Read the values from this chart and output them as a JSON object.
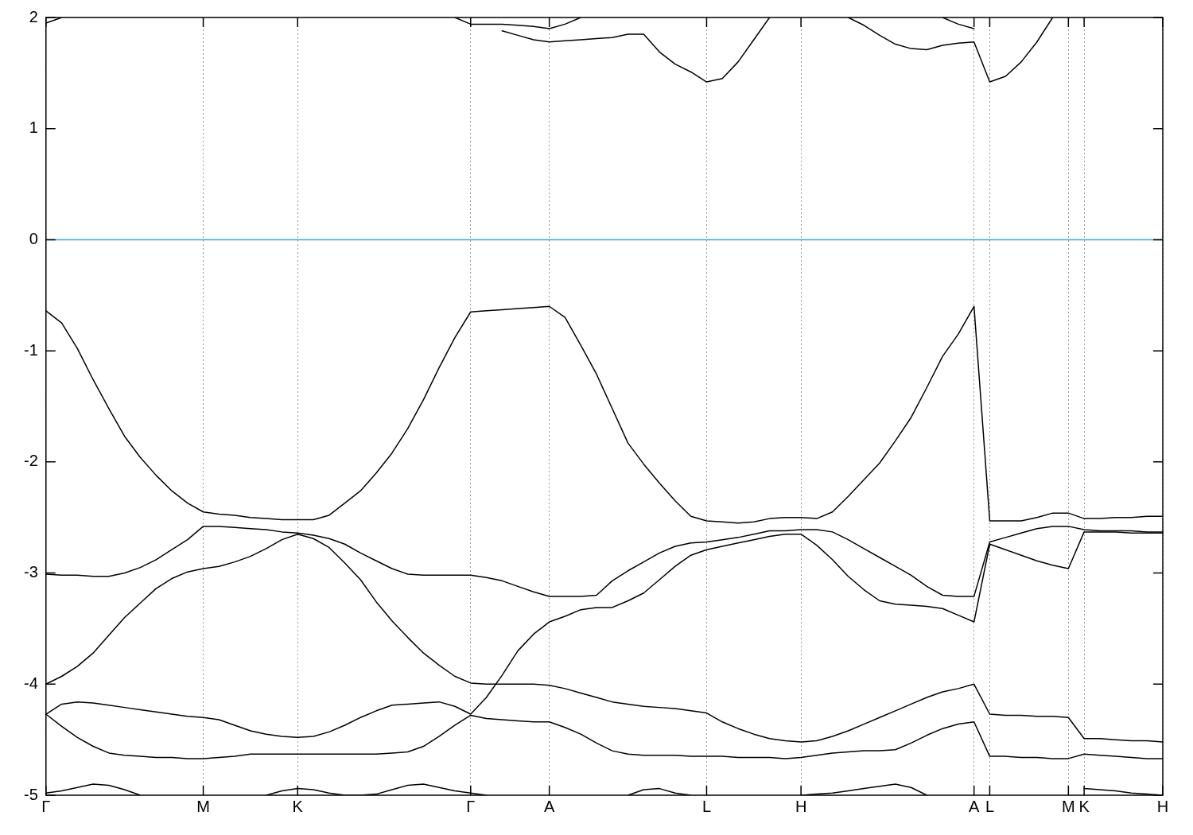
{
  "chart_data": {
    "type": "line",
    "ylim": [
      -5,
      2
    ],
    "categories": [
      "Γ",
      null,
      null,
      null,
      null,
      null,
      null,
      null,
      null,
      null,
      "M",
      null,
      null,
      null,
      null,
      null,
      "K",
      null,
      null,
      null,
      null,
      null,
      null,
      null,
      null,
      null,
      null,
      "Γ",
      null,
      null,
      null,
      null,
      "A",
      null,
      null,
      null,
      null,
      null,
      null,
      null,
      null,
      null,
      "L",
      null,
      null,
      null,
      null,
      null,
      "H",
      null,
      null,
      null,
      null,
      null,
      null,
      null,
      null,
      null,
      null,
      "A",
      "L",
      null,
      null,
      null,
      null,
      "M",
      "K",
      null,
      null,
      null,
      null,
      "H"
    ],
    "yticks": [
      -5,
      -4,
      -3,
      -2,
      -1,
      0,
      1,
      2
    ],
    "grid": "x",
    "legend": false,
    "marker": "none",
    "line_style": "solid",
    "ref_lines": [
      {
        "axis": "y",
        "value": 0,
        "color": "#3ea8dc"
      }
    ],
    "series": [
      {
        "color": "#000000",
        "values": [
          -0.64,
          -0.75,
          -0.98,
          -1.26,
          -1.52,
          -1.77,
          -1.96,
          -2.12,
          -2.26,
          -2.37,
          -2.45,
          -2.47,
          -2.48,
          -2.5,
          -2.51,
          -2.52,
          -2.52,
          -2.52,
          -2.48,
          -2.37,
          -2.26,
          -2.1,
          -1.92,
          -1.7,
          -1.44,
          -1.15,
          -0.88,
          -0.65,
          -0.64,
          -0.63,
          -0.62,
          -0.61,
          -0.6,
          -0.7,
          -0.95,
          -1.21,
          -1.52,
          -1.83,
          -2.02,
          -2.19,
          -2.35,
          -2.49,
          -2.53,
          -2.54,
          -2.55,
          -2.54,
          -2.51,
          -2.5,
          -2.5,
          -2.51,
          -2.45,
          -2.31,
          -2.16,
          -2.01,
          -1.81,
          -1.6,
          -1.33,
          -1.05,
          -0.85,
          -0.6,
          -2.53,
          -2.53,
          -2.53,
          -2.5,
          -2.46,
          -2.46,
          -2.51,
          -2.51,
          -2.5,
          -2.5,
          -2.49,
          -2.49
        ]
      },
      {
        "color": "#000000",
        "values": [
          -3.01,
          -3.02,
          -3.02,
          -3.03,
          -3.03,
          -3.0,
          -2.95,
          -2.88,
          -2.79,
          -2.7,
          -2.58,
          -2.58,
          -2.59,
          -2.6,
          -2.61,
          -2.63,
          -2.64,
          -2.66,
          -2.69,
          -2.74,
          -2.82,
          -2.89,
          -2.96,
          -3.01,
          -3.02,
          -3.02,
          -3.02,
          -3.02,
          -3.04,
          -3.07,
          -3.12,
          -3.17,
          -3.21,
          -3.21,
          -3.21,
          -3.2,
          -3.07,
          -2.98,
          -2.9,
          -2.82,
          -2.76,
          -2.73,
          -2.72,
          -2.7,
          -2.68,
          -2.65,
          -2.62,
          -2.62,
          -2.61,
          -2.61,
          -2.63,
          -2.7,
          -2.78,
          -2.86,
          -2.94,
          -3.02,
          -3.12,
          -3.2,
          -3.21,
          -3.21,
          -2.72,
          -2.68,
          -2.64,
          -2.6,
          -2.58,
          -2.58,
          -2.61,
          -2.62,
          -2.62,
          -2.62,
          -2.63,
          -2.63
        ]
      },
      {
        "color": "#000000",
        "values": [
          -4.0,
          -3.93,
          -3.84,
          -3.72,
          -3.56,
          -3.4,
          -3.27,
          -3.14,
          -3.05,
          -2.99,
          -2.96,
          -2.94,
          -2.9,
          -2.85,
          -2.78,
          -2.7,
          -2.65,
          -2.69,
          -2.77,
          -2.91,
          -3.06,
          -3.26,
          -3.43,
          -3.58,
          -3.72,
          -3.83,
          -3.93,
          -3.99,
          -4.0,
          -4.0,
          -4.0,
          -4.0,
          -4.01,
          -4.04,
          -4.08,
          -4.12,
          -4.16,
          -4.18,
          -4.2,
          -4.21,
          -4.22,
          -4.24,
          -4.26,
          -4.34,
          -4.4,
          -4.45,
          -4.49,
          -4.51,
          -4.52,
          -4.51,
          -4.47,
          -4.42,
          -4.36,
          -4.3,
          -4.24,
          -4.18,
          -4.12,
          -4.07,
          -4.04,
          -4.0,
          -4.27,
          -4.28,
          -4.28,
          -4.29,
          -4.29,
          -4.3,
          -4.49,
          -4.49,
          -4.5,
          -4.51,
          -4.51,
          -4.52
        ]
      },
      {
        "color": "#000000",
        "values": [
          -4.27,
          -4.18,
          -4.16,
          -4.17,
          -4.19,
          -4.21,
          -4.23,
          -4.25,
          -4.27,
          -4.29,
          -4.3,
          -4.32,
          -4.37,
          -4.42,
          -4.45,
          -4.47,
          -4.48,
          -4.47,
          -4.43,
          -4.37,
          -4.3,
          -4.24,
          -4.19,
          -4.18,
          -4.17,
          -4.16,
          -4.2,
          -4.27,
          -4.12,
          -3.92,
          -3.7,
          -3.55,
          -3.44,
          -3.39,
          -3.33,
          -3.31,
          -3.31,
          -3.25,
          -3.18,
          -3.06,
          -2.94,
          -2.84,
          -2.79,
          -2.76,
          -2.73,
          -2.7,
          -2.67,
          -2.65,
          -2.65,
          -2.75,
          -2.88,
          -3.03,
          -3.15,
          -3.25,
          -3.28,
          -3.29,
          -3.3,
          -3.32,
          -3.38,
          -3.44,
          -2.74,
          -2.79,
          -2.84,
          -2.89,
          -2.93,
          -2.96,
          -2.63,
          -2.63,
          -2.63,
          -2.64,
          -2.64,
          -2.64
        ]
      },
      {
        "color": "#000000",
        "values": [
          -4.27,
          -4.38,
          -4.48,
          -4.56,
          -4.62,
          -4.64,
          -4.65,
          -4.66,
          -4.66,
          -4.67,
          -4.67,
          -4.66,
          -4.65,
          -4.63,
          -4.63,
          -4.63,
          -4.63,
          -4.63,
          -4.63,
          -4.63,
          -4.63,
          -4.63,
          -4.62,
          -4.61,
          -4.56,
          -4.47,
          -4.37,
          -4.28,
          -4.31,
          -4.32,
          -4.33,
          -4.34,
          -4.34,
          -4.39,
          -4.45,
          -4.53,
          -4.6,
          -4.63,
          -4.64,
          -4.64,
          -4.64,
          -4.65,
          -4.65,
          -4.65,
          -4.66,
          -4.66,
          -4.66,
          -4.67,
          -4.66,
          -4.64,
          -4.62,
          -4.61,
          -4.6,
          -4.6,
          -4.59,
          -4.53,
          -4.46,
          -4.4,
          -4.36,
          -4.34,
          -4.65,
          -4.65,
          -4.66,
          -4.66,
          -4.67,
          -4.67,
          -4.63,
          -4.64,
          -4.65,
          -4.66,
          -4.67,
          -4.67
        ]
      },
      {
        "color": "#000000",
        "values": [
          -4.98,
          -4.96,
          -4.93,
          -4.9,
          -4.91,
          -4.95,
          -5.0,
          null,
          null,
          null,
          null,
          null,
          null,
          null,
          null,
          null,
          null,
          null,
          null,
          null,
          null,
          null,
          null,
          null,
          null,
          null,
          null,
          null,
          null,
          null,
          null,
          null,
          null,
          null,
          null,
          null,
          null,
          null,
          null,
          null,
          null,
          null,
          null,
          null,
          null,
          null,
          null,
          null,
          null,
          null,
          null,
          null,
          null,
          null,
          null,
          null,
          null,
          null,
          null,
          null,
          null,
          null,
          null,
          null,
          null,
          null,
          null,
          null,
          null,
          null,
          null,
          null
        ]
      },
      {
        "color": "#000000",
        "values": [
          null,
          null,
          null,
          null,
          null,
          null,
          null,
          null,
          null,
          null,
          null,
          null,
          null,
          null,
          -5.0,
          -4.96,
          -4.94,
          -4.95,
          -4.98,
          -5.0,
          -5.0,
          -4.99,
          -4.95,
          -4.91,
          -4.9,
          -4.93,
          -4.96,
          -4.98,
          -5.0,
          null,
          null,
          null,
          null,
          null,
          null,
          null,
          null,
          null,
          null,
          null,
          null,
          null,
          null,
          null,
          null,
          null,
          null,
          null,
          null,
          null,
          null,
          null,
          null,
          null,
          null,
          null,
          null,
          null,
          null,
          null,
          null,
          null,
          null,
          null,
          null,
          null,
          null,
          null,
          null,
          null,
          null,
          null
        ]
      },
      {
        "color": "#000000",
        "values": [
          null,
          null,
          null,
          null,
          null,
          null,
          null,
          null,
          null,
          null,
          null,
          null,
          null,
          null,
          null,
          null,
          null,
          null,
          null,
          null,
          null,
          null,
          null,
          null,
          null,
          null,
          null,
          null,
          null,
          null,
          null,
          null,
          null,
          null,
          null,
          null,
          null,
          -5.0,
          -4.95,
          -4.94,
          -4.98,
          -5.0,
          null,
          null,
          null,
          null,
          null,
          null,
          null,
          null,
          null,
          null,
          null,
          null,
          null,
          null,
          null,
          null,
          null,
          null,
          null,
          null,
          null,
          null,
          null,
          null,
          null,
          null,
          null,
          null,
          null,
          null
        ]
      },
      {
        "color": "#000000",
        "values": [
          null,
          null,
          null,
          null,
          null,
          null,
          null,
          null,
          null,
          null,
          null,
          null,
          null,
          null,
          null,
          null,
          null,
          null,
          null,
          null,
          null,
          null,
          null,
          null,
          null,
          null,
          null,
          null,
          null,
          null,
          null,
          null,
          null,
          null,
          null,
          null,
          null,
          null,
          null,
          null,
          null,
          null,
          null,
          null,
          null,
          null,
          null,
          null,
          -5.0,
          -4.99,
          -4.98,
          -4.96,
          -4.94,
          -4.92,
          -4.9,
          -4.93,
          -5.0,
          null,
          null,
          null,
          null,
          null,
          null,
          null,
          null,
          null,
          null,
          null,
          null,
          null,
          null,
          null
        ]
      },
      {
        "color": "#000000",
        "values": [
          null,
          null,
          null,
          null,
          null,
          null,
          null,
          null,
          null,
          null,
          null,
          null,
          null,
          null,
          null,
          null,
          null,
          null,
          null,
          null,
          null,
          null,
          null,
          null,
          null,
          null,
          null,
          null,
          null,
          null,
          null,
          null,
          null,
          null,
          null,
          null,
          null,
          null,
          null,
          null,
          null,
          null,
          null,
          null,
          null,
          null,
          null,
          null,
          null,
          null,
          null,
          null,
          null,
          null,
          null,
          null,
          null,
          null,
          null,
          null,
          null,
          null,
          null,
          null,
          null,
          null,
          -4.94,
          -4.95,
          -4.96,
          -4.98,
          -4.99,
          -5.0
        ]
      },
      {
        "color": "#000000",
        "values": [
          1.95,
          2.0,
          null,
          null,
          null,
          null,
          null,
          null,
          null,
          null,
          null,
          null,
          null,
          null,
          null,
          null,
          null,
          null,
          null,
          null,
          null,
          null,
          null,
          null,
          null,
          null,
          null,
          null,
          null,
          null,
          null,
          null,
          null,
          null,
          null,
          null,
          null,
          null,
          null,
          null,
          null,
          null,
          null,
          null,
          null,
          null,
          null,
          null,
          null,
          null,
          null,
          null,
          null,
          null,
          null,
          null,
          null,
          null,
          null,
          null,
          null,
          null,
          null,
          null,
          null,
          null,
          null,
          null,
          null,
          null,
          null,
          null
        ]
      },
      {
        "color": "#000000",
        "values": [
          null,
          null,
          null,
          null,
          null,
          null,
          null,
          null,
          null,
          null,
          null,
          null,
          null,
          null,
          null,
          null,
          null,
          null,
          null,
          null,
          null,
          null,
          null,
          null,
          null,
          null,
          2.0,
          1.94,
          1.94,
          1.94,
          1.93,
          1.92,
          1.9,
          1.94,
          2.0,
          null,
          null,
          null,
          null,
          null,
          null,
          null,
          null,
          null,
          null,
          null,
          null,
          null,
          null,
          null,
          null,
          null,
          null,
          null,
          null,
          null,
          null,
          null,
          null,
          null,
          null,
          null,
          null,
          null,
          null,
          null,
          null,
          null,
          null,
          null,
          null,
          null
        ]
      },
      {
        "color": "#000000",
        "values": [
          null,
          null,
          null,
          null,
          null,
          null,
          null,
          null,
          null,
          null,
          null,
          null,
          null,
          null,
          null,
          null,
          null,
          null,
          null,
          null,
          null,
          null,
          null,
          null,
          null,
          null,
          null,
          null,
          null,
          1.88,
          1.84,
          1.8,
          1.78,
          1.79,
          1.8,
          1.81,
          1.82,
          1.85,
          1.85,
          1.69,
          1.58,
          1.51,
          1.42,
          1.45,
          1.6,
          1.8,
          2.0,
          null,
          null,
          null,
          null,
          null,
          null,
          null,
          null,
          null,
          null,
          null,
          null,
          null,
          null,
          null,
          null,
          null,
          null,
          null,
          null,
          null,
          null,
          null,
          null,
          null
        ]
      },
      {
        "color": "#000000",
        "values": [
          null,
          null,
          null,
          null,
          null,
          null,
          null,
          null,
          null,
          null,
          null,
          null,
          null,
          null,
          null,
          null,
          null,
          null,
          null,
          null,
          null,
          null,
          null,
          null,
          null,
          null,
          null,
          null,
          null,
          null,
          null,
          null,
          null,
          null,
          null,
          null,
          null,
          null,
          null,
          null,
          null,
          null,
          null,
          null,
          null,
          null,
          null,
          null,
          null,
          null,
          null,
          2.0,
          1.93,
          1.84,
          1.76,
          1.72,
          1.71,
          1.75,
          1.77,
          1.78,
          1.42,
          1.47,
          1.6,
          1.78,
          2.0,
          null,
          null,
          null,
          null,
          null,
          null,
          null
        ]
      },
      {
        "color": "#000000",
        "values": [
          null,
          null,
          null,
          null,
          null,
          null,
          null,
          null,
          null,
          null,
          null,
          null,
          null,
          null,
          null,
          null,
          null,
          null,
          null,
          null,
          null,
          null,
          null,
          null,
          null,
          null,
          null,
          null,
          null,
          null,
          null,
          null,
          null,
          null,
          null,
          null,
          null,
          null,
          null,
          null,
          null,
          null,
          null,
          null,
          null,
          null,
          null,
          null,
          null,
          null,
          null,
          null,
          null,
          null,
          null,
          null,
          null,
          2.0,
          1.94,
          1.9,
          null,
          null,
          null,
          null,
          null,
          null,
          null,
          null,
          null,
          null,
          null,
          null
        ]
      }
    ]
  }
}
